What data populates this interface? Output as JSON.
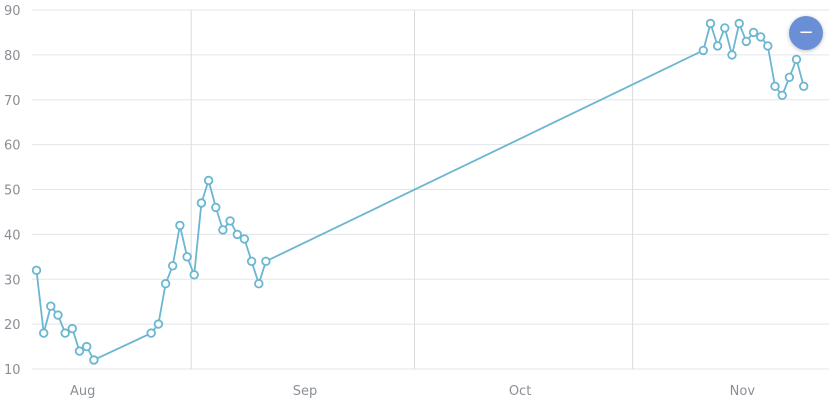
{
  "chart_data": {
    "type": "line",
    "title": "",
    "xlabel": "",
    "ylabel": "",
    "ylim": [
      10,
      90
    ],
    "yticks": [
      10,
      20,
      30,
      40,
      50,
      60,
      70,
      80,
      90
    ],
    "x_tick_labels": [
      "Aug",
      "Sep",
      "Oct",
      "Nov"
    ],
    "grid": true,
    "line_color": "#6bb6d0",
    "series": [
      {
        "points": [
          {
            "x": "Jul 29",
            "y": 32
          },
          {
            "x": "Jul 30",
            "y": 18
          },
          {
            "x": "Jul 31",
            "y": 24
          },
          {
            "x": "Aug 1",
            "y": 22
          },
          {
            "x": "Aug 2",
            "y": 18
          },
          {
            "x": "Aug 3",
            "y": 19
          },
          {
            "x": "Aug 4",
            "y": 14
          },
          {
            "x": "Aug 5",
            "y": 15
          },
          {
            "x": "Aug 6",
            "y": 12
          },
          {
            "x": "Aug 14",
            "y": 18
          },
          {
            "x": "Aug 15",
            "y": 20
          },
          {
            "x": "Aug 16",
            "y": 29
          },
          {
            "x": "Aug 17",
            "y": 33
          },
          {
            "x": "Aug 18",
            "y": 42
          },
          {
            "x": "Aug 19",
            "y": 35
          },
          {
            "x": "Aug 20",
            "y": 31
          },
          {
            "x": "Aug 21",
            "y": 47
          },
          {
            "x": "Aug 22",
            "y": 52
          },
          {
            "x": "Aug 23",
            "y": 46
          },
          {
            "x": "Aug 24",
            "y": 41
          },
          {
            "x": "Aug 25",
            "y": 43
          },
          {
            "x": "Aug 26",
            "y": 40
          },
          {
            "x": "Aug 27",
            "y": 39
          },
          {
            "x": "Aug 28",
            "y": 34
          },
          {
            "x": "Aug 29",
            "y": 29
          },
          {
            "x": "Aug 30",
            "y": 34
          },
          {
            "x": "Oct 30",
            "y": 81
          },
          {
            "x": "Oct 31",
            "y": 87
          },
          {
            "x": "Nov 1",
            "y": 82
          },
          {
            "x": "Nov 2",
            "y": 86
          },
          {
            "x": "Nov 3",
            "y": 80
          },
          {
            "x": "Nov 4",
            "y": 87
          },
          {
            "x": "Nov 5",
            "y": 83
          },
          {
            "x": "Nov 6",
            "y": 85
          },
          {
            "x": "Nov 7",
            "y": 84
          },
          {
            "x": "Nov 8",
            "y": 82
          },
          {
            "x": "Nov 9",
            "y": 73
          },
          {
            "x": "Nov 10",
            "y": 71
          },
          {
            "x": "Nov 11",
            "y": 75
          },
          {
            "x": "Nov 12",
            "y": 79
          },
          {
            "x": "Nov 13",
            "y": 73
          }
        ]
      }
    ]
  },
  "controls": {
    "zoom_out_icon": "minus-icon",
    "zoom_out_glyph": "−",
    "zoom_out_color": "#6a8fd6"
  }
}
